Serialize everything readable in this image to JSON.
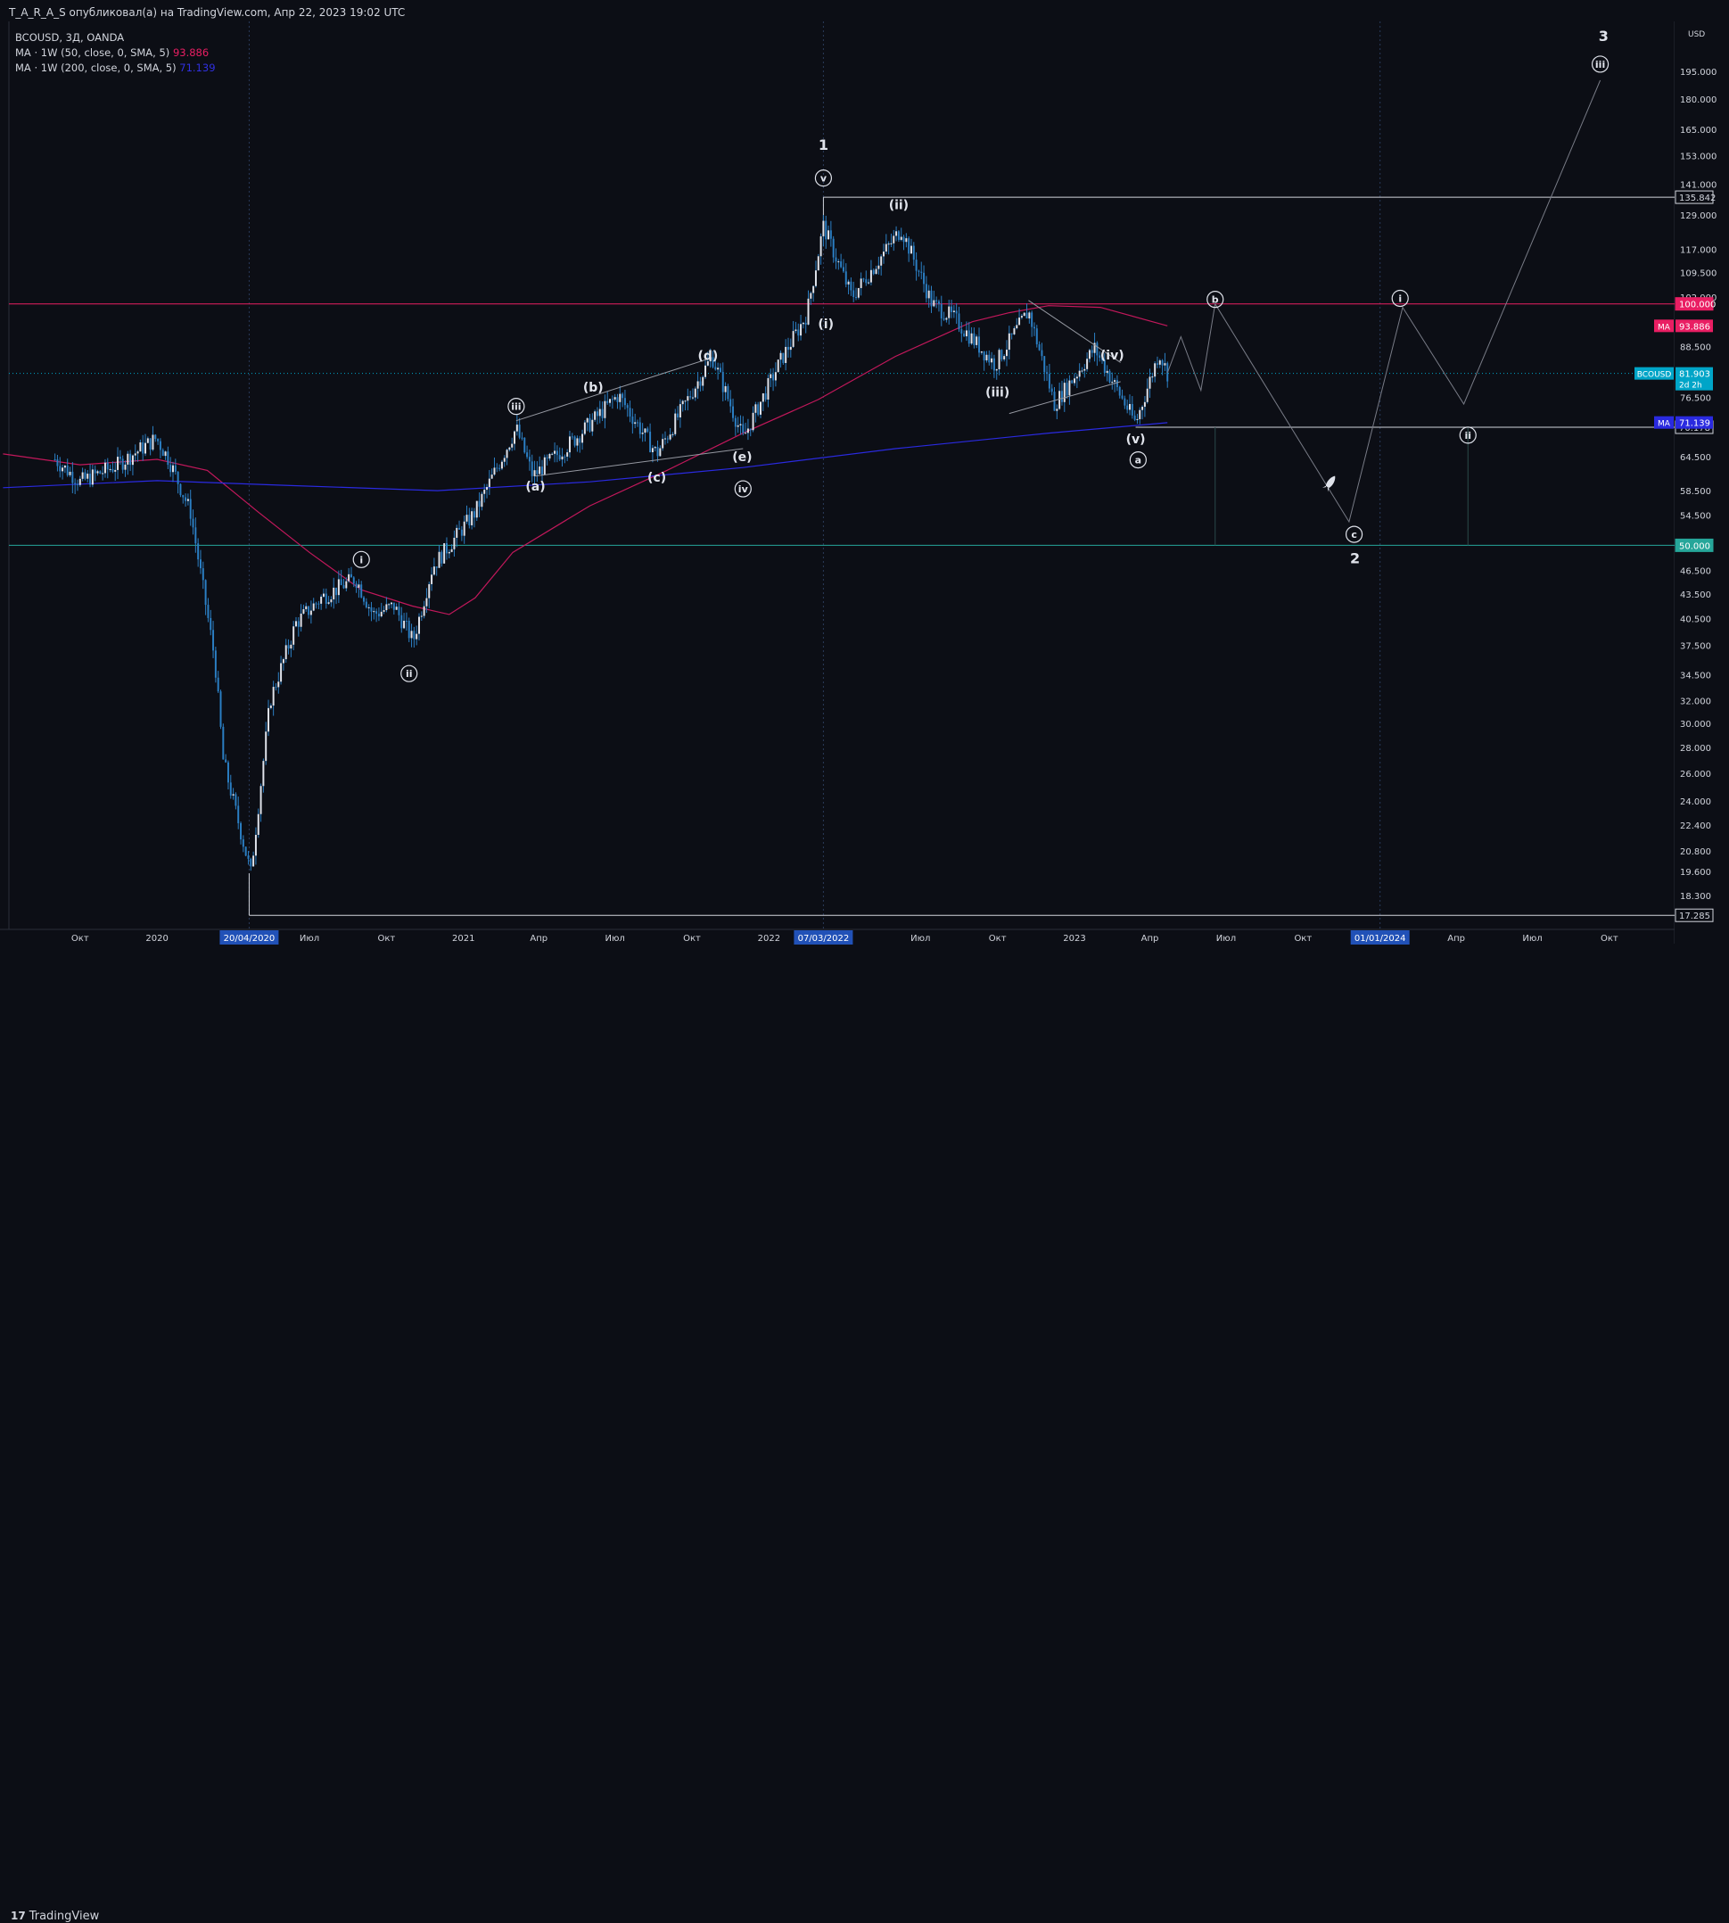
{
  "header": {
    "publish_line": "T_A_R_A_S опубликовал(а) на TradingView.com, Апр 22, 2023 19:02 UTC"
  },
  "legend": {
    "symbol_line": "BCOUSD, 3Д, OANDA",
    "ma1_label": "MA · 1W (50, close, 0, SMA, 5)",
    "ma1_value": "93.886",
    "ma2_label": "MA · 1W (200, close, 0, SMA, 5)",
    "ma2_value": "71.139"
  },
  "footer": {
    "brand": "TradingView",
    "brand_logo": "17"
  },
  "colors": {
    "background": "#0c0e15",
    "candle": "#2b7fc4",
    "ma50": "#c2185b",
    "ma200": "#2a2ae0",
    "resistance": "#e91e63",
    "support": "#26a69a",
    "grid_time": "#2a3a5a"
  },
  "chart_data": {
    "type": "line",
    "symbol": "BCOUSD",
    "currency": "USD",
    "scale": "log",
    "ylim": [
      16.6,
      225
    ],
    "price_ticks": [
      195,
      180,
      165,
      153,
      141,
      129,
      117,
      109.5,
      102,
      88.5,
      76.5,
      64.5,
      58.5,
      54.5,
      50.5,
      46.5,
      43.5,
      40.5,
      37.5,
      34.5,
      32,
      30,
      28,
      26,
      24,
      22.4,
      20.8,
      19.6,
      18.3
    ],
    "price_tick_labels": [
      "195.000",
      "180.000",
      "165.000",
      "153.000",
      "141.000",
      "129.000",
      "117.000",
      "109.500",
      "102.000",
      "88.500",
      "76.500",
      "64.500",
      "58.500",
      "54.500",
      "50.500",
      "46.500",
      "43.500",
      "40.500",
      "37.500",
      "34.500",
      "32.000",
      "30.000",
      "28.000",
      "26.000",
      "24.000",
      "22.400",
      "20.800",
      "19.600",
      "18.300"
    ],
    "time_labels": [
      {
        "date": "2019-10-01",
        "label": "Окт"
      },
      {
        "date": "2020-01-01",
        "label": "2020"
      },
      {
        "date": "2020-07-01",
        "label": "Июл"
      },
      {
        "date": "2020-10-01",
        "label": "Окт"
      },
      {
        "date": "2021-01-01",
        "label": "2021"
      },
      {
        "date": "2021-04-01",
        "label": "Апр"
      },
      {
        "date": "2021-07-01",
        "label": "Июл"
      },
      {
        "date": "2021-10-01",
        "label": "Окт"
      },
      {
        "date": "2022-01-01",
        "label": "2022"
      },
      {
        "date": "2022-07-01",
        "label": "Июл"
      },
      {
        "date": "2022-10-01",
        "label": "Окт"
      },
      {
        "date": "2023-01-01",
        "label": "2023"
      },
      {
        "date": "2023-04-01",
        "label": "Апр"
      },
      {
        "date": "2023-07-01",
        "label": "Июл"
      },
      {
        "date": "2023-10-01",
        "label": "Окт"
      },
      {
        "date": "2024-04-01",
        "label": "Апр"
      },
      {
        "date": "2024-07-01",
        "label": "Июл"
      },
      {
        "date": "2024-10-01",
        "label": "Окт"
      }
    ],
    "highlighted_dates": [
      {
        "date": "2020-04-20",
        "label": "20/04/2020"
      },
      {
        "date": "2022-03-07",
        "label": "07/03/2022"
      },
      {
        "date": "2024-01-01",
        "label": "01/01/2024"
      }
    ],
    "horizontal_levels": [
      {
        "price": 135.842,
        "label": "135.842",
        "style": "box"
      },
      {
        "price": 100.0,
        "label": "100.000",
        "style": "red"
      },
      {
        "price": 70.178,
        "label": "70.178",
        "style": "box"
      },
      {
        "price": 50.0,
        "label": "50.000",
        "style": "green"
      },
      {
        "price": 17.285,
        "label": "17.285",
        "style": "box"
      }
    ],
    "price_tags": [
      {
        "price": 93.886,
        "label": "93.886",
        "tag": "MA",
        "color": "#e91e63"
      },
      {
        "price": 81.903,
        "label": "81.903",
        "sublabel": "2d 2h",
        "tag": "BCOUSD",
        "color": "#00a5c8"
      },
      {
        "price": 71.139,
        "label": "71.139",
        "tag": "MA",
        "color": "#2a2ae0"
      }
    ],
    "series": [
      {
        "name": "BCOUSD",
        "kind": "close_path",
        "points": [
          [
            "2019-09-01",
            64
          ],
          [
            "2019-10-01",
            60
          ],
          [
            "2019-11-15",
            63
          ],
          [
            "2019-12-31",
            68
          ],
          [
            "2020-01-15",
            64
          ],
          [
            "2020-02-10",
            55
          ],
          [
            "2020-03-10",
            36
          ],
          [
            "2020-03-20",
            27
          ],
          [
            "2020-04-22",
            19.5
          ],
          [
            "2020-05-15",
            32
          ],
          [
            "2020-06-15",
            40
          ],
          [
            "2020-07-15",
            43
          ],
          [
            "2020-08-25",
            45.5
          ],
          [
            "2020-09-15",
            41
          ],
          [
            "2020-10-10",
            42
          ],
          [
            "2020-11-02",
            38
          ],
          [
            "2020-11-25",
            47
          ],
          [
            "2020-12-15",
            50
          ],
          [
            "2021-01-15",
            55
          ],
          [
            "2021-03-05",
            70
          ],
          [
            "2021-03-25",
            61
          ],
          [
            "2021-05-15",
            68
          ],
          [
            "2021-07-05",
            77
          ],
          [
            "2021-08-20",
            65
          ],
          [
            "2021-10-25",
            86
          ],
          [
            "2021-12-01",
            68
          ],
          [
            "2022-01-15",
            85
          ],
          [
            "2022-02-15",
            97
          ],
          [
            "2022-03-07",
            125
          ],
          [
            "2022-04-10",
            102
          ],
          [
            "2022-06-08",
            124
          ],
          [
            "2022-07-15",
            100
          ],
          [
            "2022-08-10",
            96
          ],
          [
            "2022-09-28",
            84
          ],
          [
            "2022-11-07",
            98
          ],
          [
            "2022-12-08",
            75
          ],
          [
            "2023-01-25",
            88
          ],
          [
            "2023-03-15",
            71
          ],
          [
            "2023-04-12",
            87
          ],
          [
            "2023-04-22",
            82
          ]
        ]
      },
      {
        "name": "MA · 1W (50, close, 0, SMA, 5)",
        "kind": "line",
        "points": [
          [
            "2019-07-01",
            65
          ],
          [
            "2019-10-01",
            63
          ],
          [
            "2020-01-01",
            64
          ],
          [
            "2020-03-01",
            62
          ],
          [
            "2020-05-01",
            55
          ],
          [
            "2020-07-01",
            49
          ],
          [
            "2020-09-01",
            44
          ],
          [
            "2020-11-01",
            42
          ],
          [
            "2020-12-15",
            41
          ],
          [
            "2021-01-15",
            43
          ],
          [
            "2021-03-01",
            49
          ],
          [
            "2021-06-01",
            56
          ],
          [
            "2021-09-01",
            62
          ],
          [
            "2021-12-01",
            69
          ],
          [
            "2022-03-01",
            76
          ],
          [
            "2022-06-01",
            86
          ],
          [
            "2022-09-01",
            95
          ],
          [
            "2022-10-15",
            97.5
          ],
          [
            "2022-12-01",
            99.5
          ],
          [
            "2023-02-01",
            99
          ],
          [
            "2023-04-22",
            93.9
          ]
        ]
      },
      {
        "name": "MA · 1W (200, close, 0, SMA, 5)",
        "kind": "line",
        "points": [
          [
            "2019-07-01",
            59
          ],
          [
            "2019-10-01",
            59.6
          ],
          [
            "2020-01-01",
            60.2
          ],
          [
            "2020-06-01",
            59.4
          ],
          [
            "2020-12-01",
            58.5
          ],
          [
            "2021-06-01",
            60
          ],
          [
            "2021-12-01",
            62.5
          ],
          [
            "2022-06-01",
            66
          ],
          [
            "2022-12-01",
            69
          ],
          [
            "2023-04-22",
            71.1
          ]
        ]
      }
    ],
    "wave_labels": [
      {
        "date": "2020-09-01",
        "price": 48,
        "text": "i",
        "style": "circle"
      },
      {
        "date": "2020-10-28",
        "price": 34.6,
        "text": "ii",
        "style": "circle"
      },
      {
        "date": "2021-03-05",
        "price": 74.5,
        "text": "iii",
        "style": "circle"
      },
      {
        "date": "2021-12-01",
        "price": 58.8,
        "text": "iv",
        "style": "circle"
      },
      {
        "date": "2022-03-07",
        "price": 143.5,
        "text": "v",
        "style": "circle"
      },
      {
        "date": "2022-03-07",
        "price": 158,
        "text": "1",
        "style": "big"
      },
      {
        "date": "2021-03-28",
        "price": 59.3,
        "text": "(a)",
        "style": "paren"
      },
      {
        "date": "2021-06-05",
        "price": 78.7,
        "text": "(b)",
        "style": "paren"
      },
      {
        "date": "2021-08-20",
        "price": 60.8,
        "text": "(c)",
        "style": "paren"
      },
      {
        "date": "2021-10-20",
        "price": 86.2,
        "text": "(d)",
        "style": "paren"
      },
      {
        "date": "2021-11-30",
        "price": 64.5,
        "text": "(e)",
        "style": "paren"
      },
      {
        "date": "2022-03-10",
        "price": 94.5,
        "text": "(i)",
        "style": "paren"
      },
      {
        "date": "2022-06-05",
        "price": 133,
        "text": "(ii)",
        "style": "paren"
      },
      {
        "date": "2022-10-01",
        "price": 77.6,
        "text": "(iii)",
        "style": "paren"
      },
      {
        "date": "2023-02-15",
        "price": 86.4,
        "text": "(iv)",
        "style": "paren"
      },
      {
        "date": "2023-03-15",
        "price": 67.9,
        "text": "(v)",
        "style": "paren"
      },
      {
        "date": "2023-03-18",
        "price": 63.9,
        "text": "a",
        "style": "circle"
      },
      {
        "date": "2023-06-18",
        "price": 101.3,
        "text": "b",
        "style": "circle"
      },
      {
        "date": "2023-12-01",
        "price": 51.6,
        "text": "c",
        "style": "circle"
      },
      {
        "date": "2023-12-02",
        "price": 48.2,
        "text": "2",
        "style": "big"
      },
      {
        "date": "2024-01-25",
        "price": 101.6,
        "text": "i",
        "style": "circle"
      },
      {
        "date": "2024-04-15",
        "price": 68.6,
        "text": "ii",
        "style": "circle"
      },
      {
        "date": "2024-09-24",
        "price": 216,
        "text": "3",
        "style": "big"
      },
      {
        "date": "2024-09-20",
        "price": 199,
        "text": "iii",
        "style": "circle"
      }
    ],
    "projection_path": [
      [
        "2023-04-22",
        82
      ],
      [
        "2023-05-08",
        91
      ],
      [
        "2023-06-01",
        78
      ],
      [
        "2023-06-18",
        100
      ],
      [
        "2023-11-25",
        53.5
      ],
      [
        "2024-01-28",
        99
      ],
      [
        "2024-04-10",
        75
      ],
      [
        "2024-09-20",
        190
      ]
    ],
    "triangles": [
      {
        "upper": [
          [
            "2021-03-05",
            71.5
          ],
          [
            "2021-10-22",
            85.5
          ]
        ],
        "lower": [
          [
            "2021-03-28",
            61
          ],
          [
            "2021-12-01",
            66
          ]
        ]
      },
      {
        "upper": [
          [
            "2022-11-07",
            101
          ],
          [
            "2023-02-25",
            84.5
          ]
        ],
        "lower": [
          [
            "2022-10-15",
            73
          ],
          [
            "2023-02-25",
            80
          ]
        ]
      }
    ]
  }
}
